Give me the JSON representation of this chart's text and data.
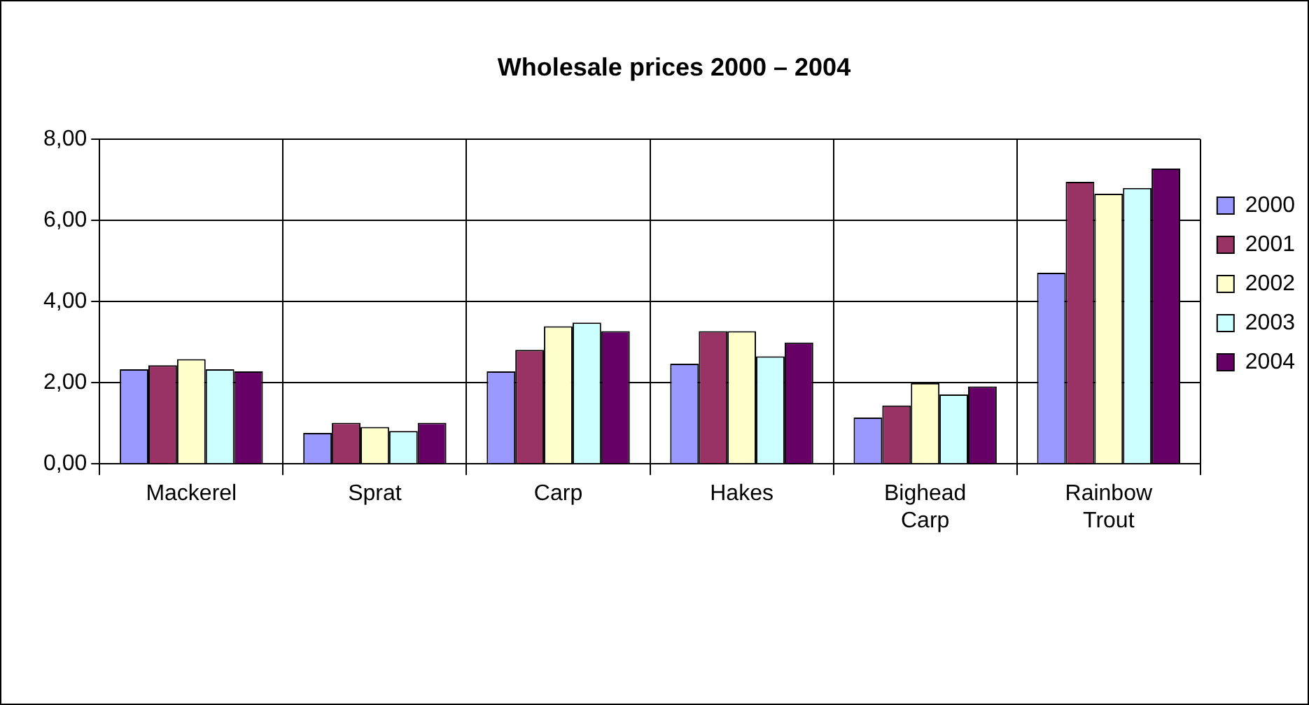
{
  "chart_data": {
    "type": "bar",
    "title": "Wholesale prices 2000 – 2004",
    "categories": [
      "Mackerel",
      "Sprat",
      "Carp",
      "Hakes",
      "Bighead Carp",
      "Rainbow Trout"
    ],
    "series": [
      {
        "name": "2000",
        "color": "#9999ff",
        "values": [
          2.33,
          0.76,
          2.28,
          2.47,
          1.14,
          4.71
        ]
      },
      {
        "name": "2001",
        "color": "#993366",
        "values": [
          2.43,
          1.01,
          2.81,
          3.27,
          1.44,
          6.95
        ]
      },
      {
        "name": "2002",
        "color": "#ffffcc",
        "values": [
          2.58,
          0.91,
          3.39,
          3.27,
          1.99,
          6.66
        ]
      },
      {
        "name": "2003",
        "color": "#ccffff",
        "values": [
          2.33,
          0.81,
          3.48,
          2.65,
          1.71,
          6.8
        ]
      },
      {
        "name": "2004",
        "color": "#660066",
        "values": [
          2.28,
          1.01,
          3.27,
          2.99,
          1.91,
          7.28
        ]
      }
    ],
    "ylim": [
      0,
      8
    ],
    "yticks": [
      {
        "value": 0,
        "label": "0,00"
      },
      {
        "value": 2,
        "label": "2,00"
      },
      {
        "value": 4,
        "label": "4,00"
      },
      {
        "value": 6,
        "label": "6,00"
      },
      {
        "value": 8,
        "label": "8,00"
      }
    ],
    "grid": true,
    "legend": "right"
  }
}
